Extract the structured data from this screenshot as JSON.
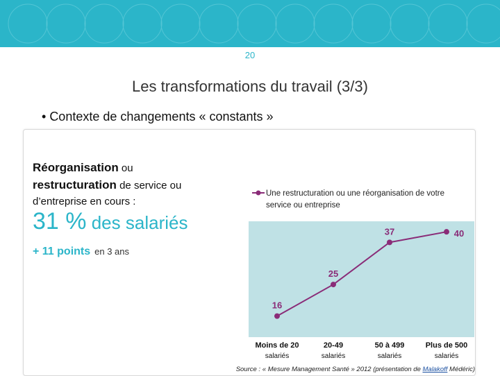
{
  "header": {
    "page_number": "20",
    "title": "Les transformations du travail (3/3)"
  },
  "bullet": "Contexte de changements « constants »",
  "left": {
    "line1_bold": "Réorganisation",
    "line1_rest": " ou",
    "line2_bold": "restructuration",
    "line2_rest": " de service ou",
    "line3": "d’entreprise en cours :",
    "percent_value": "31 %",
    "percent_rest": " des salariés",
    "points_value": "+ 11 points",
    "points_rest": "en 3 ans"
  },
  "colors": {
    "accent": "#2bb5c9",
    "series": "#8a2c78",
    "plot_bg": "#bfe1e5"
  },
  "chart_data": {
    "type": "line",
    "categories": [
      "Moins de 20 salariés",
      "20-49 salariés",
      "50 à 499 salariés",
      "Plus de 500 salariés"
    ],
    "series": [
      {
        "name": "Une restructuration ou une réorganisation de votre service ou entreprise",
        "values": [
          16,
          25,
          37,
          40
        ],
        "labels": [
          "16",
          "25",
          "37",
          "40"
        ]
      }
    ],
    "ylim": [
      10,
      43
    ],
    "legend": "top"
  },
  "source": {
    "prefix": "Source : « Mesure Management Santé » 2012 (présentation de ",
    "link": "Malakoff",
    "suffix": " Médéric)"
  }
}
